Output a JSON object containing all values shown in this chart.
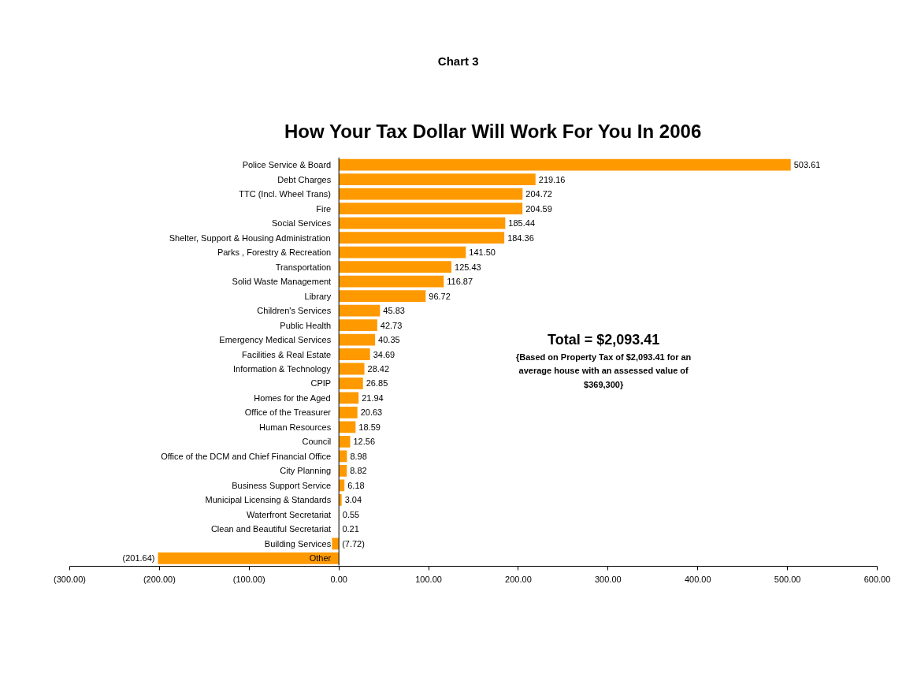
{
  "chart_data": {
    "type": "bar",
    "orientation": "horizontal",
    "title": "How Your Tax Dollar Will Work For You In 2006",
    "annotations": [
      "Chart 3",
      "Total = $2,093.41",
      "{Based on Property Tax of $2,093.41 for an average house with an assessed value of $369,300}"
    ],
    "categories": [
      "Police Service & Board",
      "Debt Charges",
      "TTC (Incl. Wheel Trans)",
      "Fire",
      "Social Services",
      "Shelter, Support & Housing Administration",
      "Parks , Forestry & Recreation",
      "Transportation",
      "Solid Waste Management",
      "Library",
      "Children's Services",
      "Public Health",
      "Emergency Medical Services",
      "Facilities & Real Estate",
      "Information & Technology",
      "CPIP",
      "Homes for the Aged",
      "Office of the Treasurer",
      "Human Resources",
      "Council",
      "Office of the DCM and Chief Financial Office",
      "City Planning",
      "Business Support Service",
      "Municipal Licensing & Standards",
      "Waterfront Secretariat",
      "Clean and Beautiful Secretariat",
      "Building Services",
      "Other"
    ],
    "values": [
      503.61,
      219.16,
      204.72,
      204.59,
      185.44,
      184.36,
      141.5,
      125.43,
      116.87,
      96.72,
      45.83,
      42.73,
      40.35,
      34.69,
      28.42,
      26.85,
      21.94,
      20.63,
      18.59,
      12.56,
      8.98,
      8.82,
      6.18,
      3.04,
      0.55,
      0.21,
      -7.72,
      -201.64
    ],
    "value_labels": [
      "503.61",
      "219.16",
      "204.72",
      "204.59",
      "185.44",
      "184.36",
      "141.50",
      "125.43",
      "116.87",
      "96.72",
      "45.83",
      "42.73",
      "40.35",
      "34.69",
      "28.42",
      "26.85",
      "21.94",
      "20.63",
      "18.59",
      "12.56",
      "8.98",
      "8.82",
      "6.18",
      "3.04",
      "0.55",
      "0.21",
      "(7.72)",
      "(201.64)"
    ],
    "color": "#ff9900",
    "xlim": [
      -300,
      600
    ],
    "xticks": [
      {
        "value": -300,
        "label": "(300.00)"
      },
      {
        "value": -200,
        "label": "(200.00)"
      },
      {
        "value": -100,
        "label": "(100.00)"
      },
      {
        "value": 0,
        "label": "0.00"
      },
      {
        "value": 100,
        "label": "100.00"
      },
      {
        "value": 200,
        "label": "200.00"
      },
      {
        "value": 300,
        "label": "300.00"
      },
      {
        "value": 400,
        "label": "400.00"
      },
      {
        "value": 500,
        "label": "500.00"
      },
      {
        "value": 600,
        "label": "600.00"
      }
    ]
  }
}
